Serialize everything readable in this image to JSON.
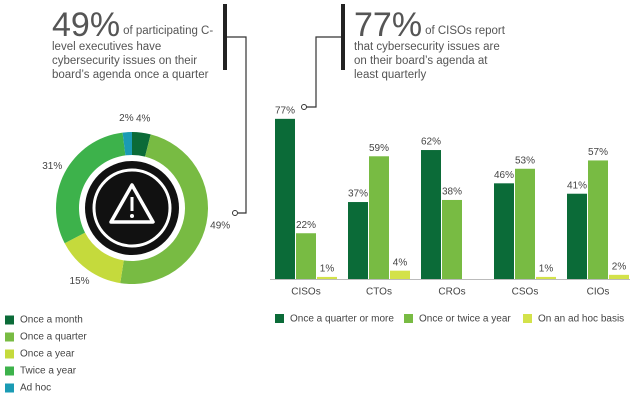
{
  "chart_data": [
    {
      "type": "donut",
      "callout": {
        "figure": "49%",
        "text": "of participating C-level executives have cybersecurity issues on their board’s agenda once a quarter"
      },
      "categories": [
        "Once a month",
        "Once a quarter",
        "Once a year",
        "Twice a year",
        "Ad hoc"
      ],
      "values": [
        4,
        49,
        15,
        31,
        2
      ],
      "value_labels": [
        "4%",
        "49%",
        "15%",
        "31%",
        "2%"
      ],
      "colors": [
        "#0b6b38",
        "#78bb43",
        "#c5da3c",
        "#3db24b",
        "#1a9bb4"
      ]
    },
    {
      "type": "bar",
      "callout": {
        "figure": "77%",
        "text": "of CISOs report that cybersecurity issues are on their board’s agenda at least quarterly"
      },
      "categories": [
        "CISOs",
        "CTOs",
        "CROs",
        "CSOs",
        "CIOs"
      ],
      "series": [
        {
          "name": "Once a quarter or more",
          "color": "#0b6b38",
          "values": [
            77,
            37,
            62,
            46,
            41
          ],
          "value_labels": [
            "77%",
            "37%",
            "62%",
            "46%",
            "41%"
          ]
        },
        {
          "name": "Once or twice a year",
          "color": "#78bb43",
          "values": [
            22,
            59,
            38,
            53,
            57
          ],
          "value_labels": [
            "22%",
            "59%",
            "38%",
            "53%",
            "57%"
          ]
        },
        {
          "name": "On an ad hoc basis",
          "color": "#d3e24a",
          "values": [
            1,
            4,
            null,
            1,
            2
          ],
          "value_labels": [
            "1%",
            "4%",
            null,
            "1%",
            "2%"
          ]
        }
      ]
    }
  ]
}
